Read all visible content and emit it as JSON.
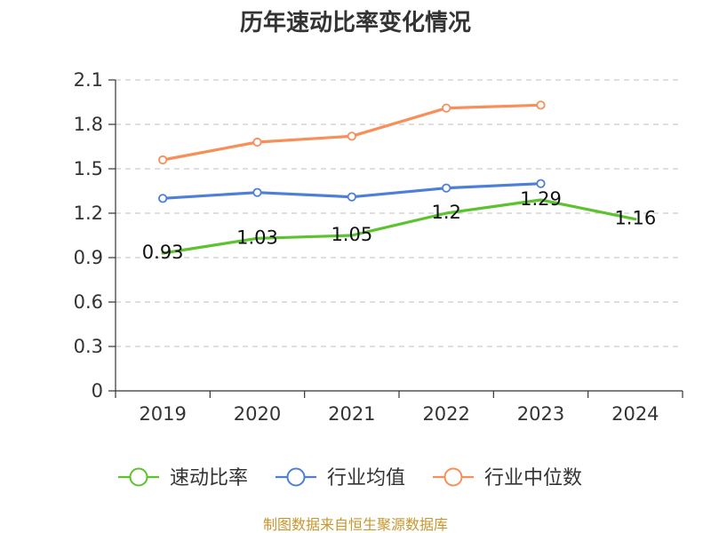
{
  "chart_data": {
    "type": "line",
    "title": "历年速动比率变化情况",
    "categories": [
      "2019",
      "2020",
      "2021",
      "2022",
      "2023",
      "2024"
    ],
    "yticks": [
      "0",
      "0.3",
      "0.6",
      "0.9",
      "1.2",
      "1.5",
      "1.8",
      "2.1"
    ],
    "ylim": [
      0,
      2.1
    ],
    "grid": true,
    "legend_position": "bottom",
    "series": [
      {
        "name": "速动比率",
        "color": "#5cc22e",
        "values": [
          0.93,
          1.03,
          1.05,
          1.2,
          1.29,
          1.16
        ],
        "labels": [
          "0.93",
          "1.03",
          "1.05",
          "1.2",
          "1.29",
          "1.16"
        ],
        "show_markers": false,
        "show_labels": true
      },
      {
        "name": "行业均值",
        "color": "#4e7fd8",
        "values": [
          1.3,
          1.34,
          1.31,
          1.37,
          1.4,
          null
        ],
        "show_markers": true,
        "show_labels": false
      },
      {
        "name": "行业中位数",
        "color": "#f88e58",
        "values": [
          1.56,
          1.68,
          1.72,
          1.91,
          1.93,
          null
        ],
        "show_markers": true,
        "show_labels": false
      }
    ],
    "source": "制图数据来自恒生聚源数据库"
  }
}
